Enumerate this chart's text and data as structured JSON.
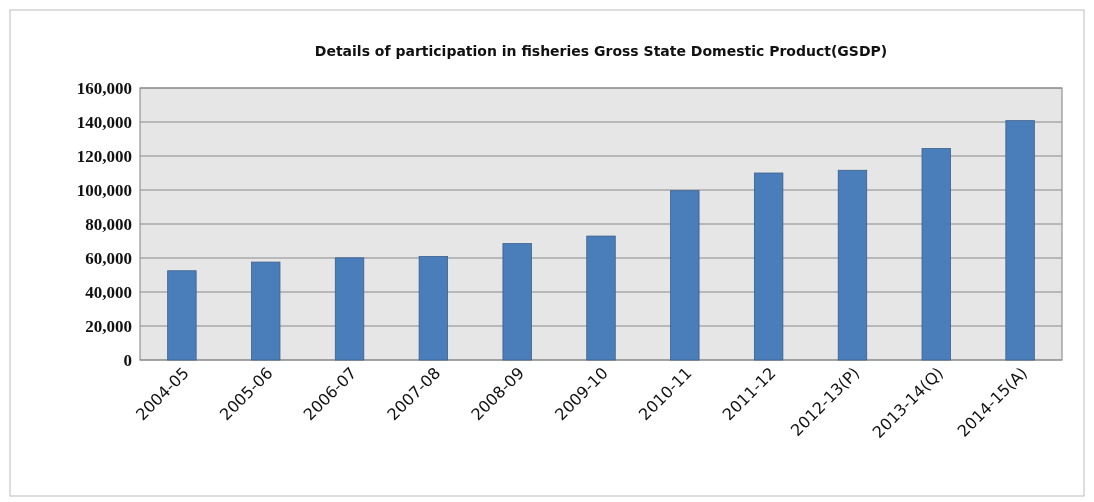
{
  "chart_data": {
    "type": "bar",
    "title": "Details of participation in fisheries Gross State Domestic Product(GSDP)",
    "categories": [
      "2004-05",
      "2005-06",
      "2006-07",
      "2007-08",
      "2008-09",
      "2009-10",
      "2010-11",
      "2011-12",
      "2012-13(P)",
      "2013-14(Q)",
      "2014-15(A)"
    ],
    "values": [
      52500,
      57600,
      60100,
      60900,
      68500,
      72900,
      99600,
      110000,
      111600,
      124400,
      140800
    ],
    "color": "#4a7ebb",
    "ylim": [
      0,
      160000
    ],
    "yticks": [
      {
        "value": 0,
        "label": "0"
      },
      {
        "value": 20000,
        "label": "20,000"
      },
      {
        "value": 40000,
        "label": "40,000"
      },
      {
        "value": 60000,
        "label": "60,000"
      },
      {
        "value": 80000,
        "label": "80,000"
      },
      {
        "value": 100000,
        "label": "100,000"
      },
      {
        "value": 120000,
        "label": "120,000"
      },
      {
        "value": 140000,
        "label": "140,000"
      },
      {
        "value": 160000,
        "label": "160,000"
      }
    ],
    "grid": "y"
  }
}
